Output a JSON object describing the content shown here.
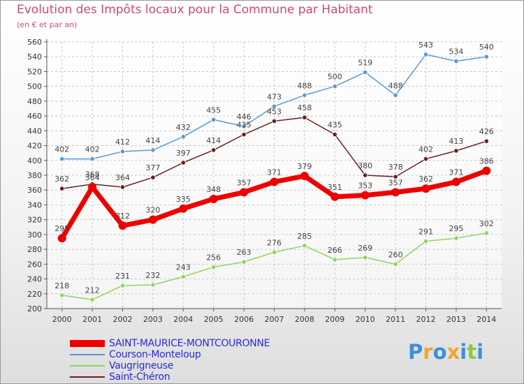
{
  "header": {
    "title": "Evolution des Impôts locaux pour la Commune par Habitant",
    "subtitle": "(en € et par an)"
  },
  "logo": {
    "letters": [
      "P",
      "r",
      "o",
      "x",
      "i",
      "t",
      "i"
    ],
    "colors": [
      "#3d8fd8",
      "#f0a530",
      "#3d8fd8",
      "#f0a530",
      "#3d8fd8",
      "#8ec63f",
      "#3d8fd8"
    ]
  },
  "chart_data": {
    "type": "line",
    "title": "Evolution des Impôts locaux pour la Commune par Habitant",
    "subtitle": "(en € et par an)",
    "xlabel": "",
    "ylabel": "",
    "x": [
      2000,
      2001,
      2002,
      2003,
      2004,
      2005,
      2006,
      2007,
      2008,
      2009,
      2010,
      2011,
      2012,
      2013,
      2014
    ],
    "ylim": [
      200,
      560
    ],
    "yticks": [
      200,
      220,
      240,
      260,
      280,
      300,
      320,
      340,
      360,
      380,
      400,
      420,
      440,
      460,
      480,
      500,
      520,
      540,
      560
    ],
    "grid": true,
    "legend_position": "bottom-left",
    "series": [
      {
        "name": "SAINT-MAURICE-MONTCOURONNE",
        "color": "#ee0000",
        "emphasis": true,
        "values": [
          295,
          364,
          312,
          320,
          335,
          348,
          357,
          371,
          379,
          351,
          353,
          357,
          362,
          371,
          386
        ]
      },
      {
        "name": "Courson-Monteloup",
        "color": "#5b9ad0",
        "emphasis": false,
        "values": [
          402,
          402,
          412,
          414,
          432,
          455,
          446,
          473,
          488,
          500,
          519,
          488,
          543,
          534,
          540
        ]
      },
      {
        "name": "Vaugrigneuse",
        "color": "#8ed45e",
        "emphasis": false,
        "values": [
          218,
          212,
          231,
          232,
          243,
          256,
          263,
          276,
          285,
          266,
          269,
          260,
          291,
          295,
          302
        ]
      },
      {
        "name": "Saint-Chéron",
        "color": "#6b1f1f",
        "emphasis": false,
        "values": [
          362,
          368,
          364,
          377,
          397,
          414,
          435,
          453,
          458,
          435,
          380,
          378,
          402,
          413,
          426
        ]
      }
    ]
  }
}
